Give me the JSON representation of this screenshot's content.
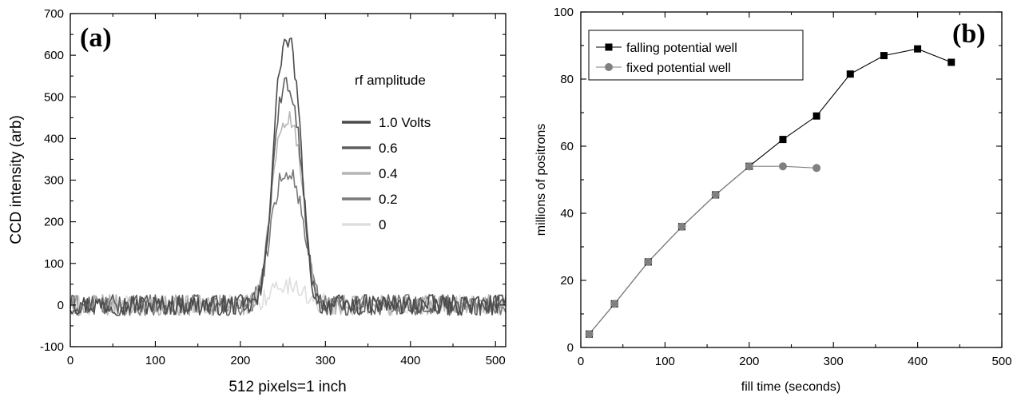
{
  "chart_data": [
    {
      "panel": "(a)",
      "type": "line",
      "xlabel": "512 pixels=1 inch",
      "ylabel": "CCD intensity (arb)",
      "xlim": [
        0,
        512
      ],
      "ylim": [
        -100,
        700
      ],
      "x_ticks": [
        0,
        100,
        200,
        300,
        400,
        500
      ],
      "y_ticks": [
        -100,
        0,
        100,
        200,
        300,
        400,
        500,
        600,
        700
      ],
      "grid": false,
      "legend_title": "rf amplitude",
      "legend_position": "right",
      "peak_center": 255,
      "noise_amplitude": 25,
      "series": [
        {
          "name": "1.0 Volts",
          "peak": 632,
          "width": 16,
          "color": "#4a4a4a"
        },
        {
          "name": "0.6",
          "peak": 528,
          "width": 17,
          "color": "#5e5e5e"
        },
        {
          "name": "0.4",
          "peak": 450,
          "width": 18,
          "color": "#b5b5b5"
        },
        {
          "name": "0.2",
          "peak": 318,
          "width": 19,
          "color": "#7a7a7a"
        },
        {
          "name": "0",
          "peak": 45,
          "width": 22,
          "color": "#dedede"
        }
      ]
    },
    {
      "panel": "(b)",
      "type": "line",
      "xlabel": "fill time (seconds)",
      "ylabel": "millions of positrons",
      "xlim": [
        0,
        500
      ],
      "ylim": [
        0,
        100
      ],
      "x_ticks": [
        0,
        100,
        200,
        300,
        400,
        500
      ],
      "y_ticks": [
        0,
        20,
        40,
        60,
        80,
        100
      ],
      "grid": false,
      "legend_position": "top-left",
      "series": [
        {
          "name": "falling potential well",
          "marker": "square",
          "color": "#000000",
          "x": [
            10,
            40,
            80,
            120,
            160,
            200,
            240,
            280,
            320,
            360,
            400,
            440
          ],
          "y": [
            4,
            13,
            25.5,
            36,
            45.5,
            54,
            62,
            69,
            81.5,
            87,
            89,
            85
          ]
        },
        {
          "name": "fixed potential well",
          "marker": "circle",
          "color": "#808080",
          "x": [
            10,
            40,
            80,
            120,
            160,
            200,
            240,
            280
          ],
          "y": [
            4,
            13,
            25.5,
            36,
            45.5,
            54,
            54,
            53.5
          ]
        }
      ]
    }
  ]
}
